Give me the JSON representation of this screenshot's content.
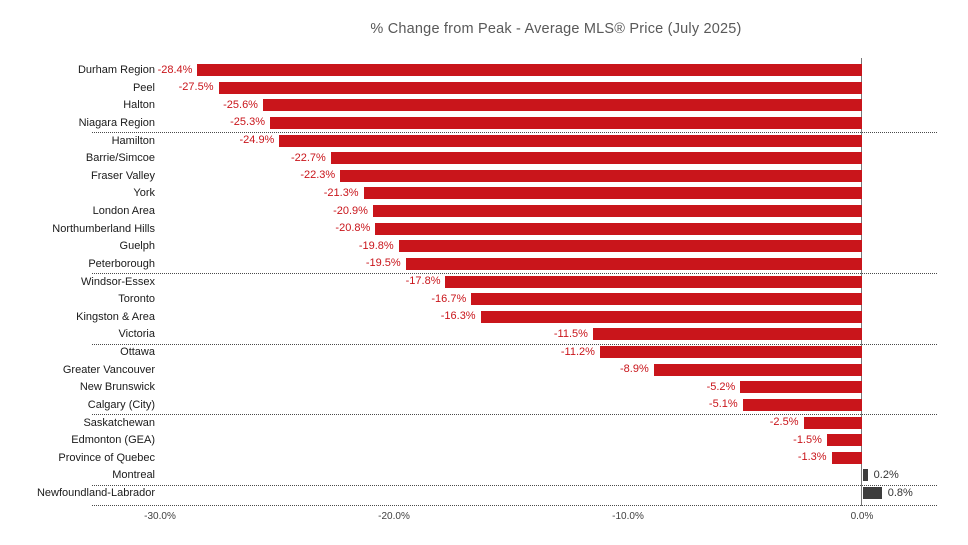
{
  "title": "% Change from Peak - Average MLS® Price (July 2025)",
  "chart_data": {
    "type": "bar",
    "orientation": "horizontal",
    "title": "% Change from Peak - Average MLS® Price (July 2025)",
    "xlabel": "",
    "ylabel": "",
    "xlim": [
      -30,
      2.5
    ],
    "grid": "dotted group separators",
    "legend": "none",
    "categories": [
      "Durham Region",
      "Peel",
      "Halton",
      "Niagara Region",
      "Hamilton",
      "Barrie/Simcoe",
      "Fraser Valley",
      "York",
      "London Area",
      "Northumberland Hills",
      "Guelph",
      "Peterborough",
      "Windsor-Essex",
      "Toronto",
      "Kingston & Area",
      "Victoria",
      "Ottawa",
      "Greater Vancouver",
      "New Brunswick",
      "Calgary (City)",
      "Saskatchewan",
      "Edmonton (GEA)",
      "Province of Quebec",
      "Montreal",
      "Newfoundland-Labrador"
    ],
    "values": [
      -28.4,
      -27.5,
      -25.6,
      -25.3,
      -24.9,
      -22.7,
      -22.3,
      -21.3,
      -20.9,
      -20.8,
      -19.8,
      -19.5,
      -17.8,
      -16.7,
      -16.3,
      -11.5,
      -11.2,
      -8.9,
      -5.2,
      -5.1,
      -2.5,
      -1.5,
      -1.3,
      0.2,
      0.8
    ],
    "labels": [
      "-28.4%",
      "-27.5%",
      "-25.6%",
      "-25.3%",
      "-24.9%",
      "-22.7%",
      "-22.3%",
      "-21.3%",
      "-20.9%",
      "-20.8%",
      "-19.8%",
      "-19.5%",
      "-17.8%",
      "-16.7%",
      "-16.3%",
      "-11.5%",
      "-11.2%",
      "-8.9%",
      "-5.2%",
      "-5.1%",
      "-2.5%",
      "-1.5%",
      "-1.3%",
      "0.2%",
      "0.8%"
    ],
    "x_ticks": [
      "-30.0%",
      "-20.0%",
      "-10.0%",
      "0.0%"
    ],
    "x_tick_values": [
      -30,
      -20,
      -10,
      0
    ],
    "separators_after": [
      3,
      11,
      15,
      19,
      23
    ],
    "colors": {
      "negative_bar": "#c9151b",
      "positive_bar": "#3d3d3d",
      "negative_label": "#c9151b",
      "positive_label": "#333333",
      "title": "#595959",
      "axis_text": "#404040",
      "grid": "#4a4a4a"
    }
  }
}
